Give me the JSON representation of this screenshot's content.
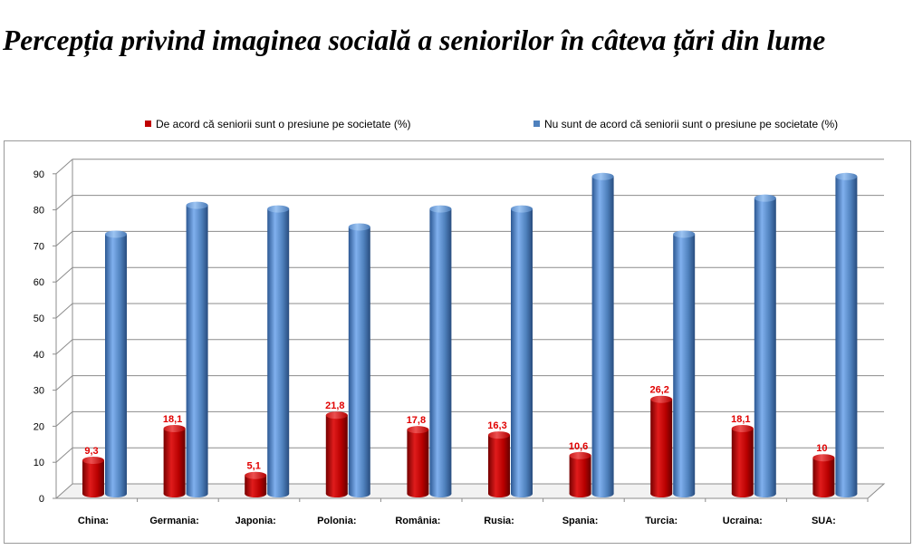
{
  "title": "Percepția privind imaginea socială a seniorilor în câteva țări din lume",
  "chart_data": {
    "type": "bar",
    "variant": "3d-clustered-cylinder",
    "categories": [
      "China:",
      "Germania:",
      "Japonia:",
      "Polonia:",
      "România:",
      "Rusia:",
      "Spania:",
      "Turcia:",
      "Ucraina:",
      "SUA:"
    ],
    "series": [
      {
        "name": "De acord că seniorii sunt o presiune pe societate (%)",
        "color": "#c00000",
        "values": [
          9.3,
          18.1,
          5.1,
          21.8,
          17.8,
          16.3,
          10.6,
          26.2,
          18.1,
          10
        ],
        "data_labels": [
          "9,3",
          "18,1",
          "5,1",
          "21,8",
          "17,8",
          "16,3",
          "10,6",
          "26,2",
          "18,1",
          "10"
        ]
      },
      {
        "name": "Nu sunt de acord că seniorii sunt o presiune pe societate (%)",
        "color": "#4f81bd",
        "values": [
          72,
          80,
          79,
          74,
          79,
          79,
          88,
          72,
          82,
          88
        ]
      }
    ],
    "ylim": [
      0,
      90
    ],
    "yticks": [
      0,
      10,
      20,
      30,
      40,
      50,
      60,
      70,
      80,
      90
    ],
    "grid": true,
    "legend": "top"
  }
}
